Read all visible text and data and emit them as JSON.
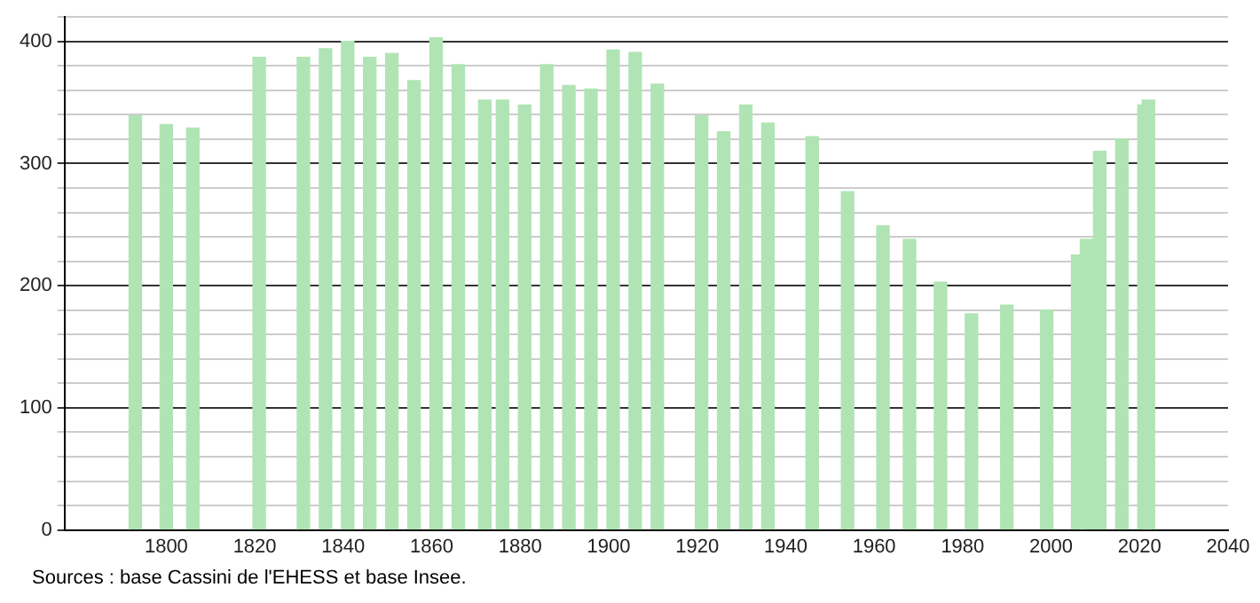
{
  "chart_data": {
    "type": "bar",
    "x": [
      1793,
      1800,
      1806,
      1821,
      1831,
      1836,
      1841,
      1846,
      1851,
      1856,
      1861,
      1866,
      1872,
      1876,
      1881,
      1886,
      1891,
      1896,
      1901,
      1906,
      1911,
      1921,
      1926,
      1931,
      1936,
      1946,
      1954,
      1962,
      1968,
      1975,
      1982,
      1990,
      1999,
      2006,
      2008,
      2011,
      2016,
      2021,
      2022
    ],
    "values": [
      339,
      332,
      329,
      387,
      387,
      394,
      400,
      387,
      390,
      368,
      403,
      381,
      352,
      352,
      348,
      381,
      364,
      361,
      393,
      391,
      365,
      339,
      326,
      348,
      333,
      322,
      277,
      249,
      238,
      203,
      177,
      184,
      180,
      225,
      238,
      310,
      320,
      348,
      352
    ],
    "color": "#b0e4b4",
    "xlim": [
      1777,
      2040
    ],
    "xticks": [
      1800,
      1820,
      1840,
      1860,
      1880,
      1900,
      1920,
      1940,
      1960,
      1980,
      2000,
      2020,
      2040
    ],
    "ylim": [
      0,
      420
    ],
    "yticks": [
      0,
      {
        "value": 20,
        "label": null
      },
      {
        "value": 40,
        "label": null
      },
      {
        "value": 60,
        "label": null
      },
      {
        "value": 80,
        "label": null
      },
      100,
      {
        "value": 120,
        "label": null
      },
      {
        "value": 140,
        "label": null
      },
      {
        "value": 160,
        "label": null
      },
      {
        "value": 180,
        "label": null
      },
      200,
      {
        "value": 220,
        "label": null
      },
      {
        "value": 240,
        "label": null
      },
      {
        "value": 260,
        "label": null
      },
      {
        "value": 280,
        "label": null
      },
      300,
      {
        "value": 320,
        "label": null
      },
      {
        "value": 340,
        "label": null
      },
      {
        "value": 360,
        "label": null
      },
      {
        "value": 380,
        "label": null
      },
      400,
      {
        "value": 420,
        "label": null
      }
    ],
    "grid": "y",
    "legend": false,
    "annotations": [
      "Sources : base Cassini de l'EHESS et base Insee."
    ]
  }
}
